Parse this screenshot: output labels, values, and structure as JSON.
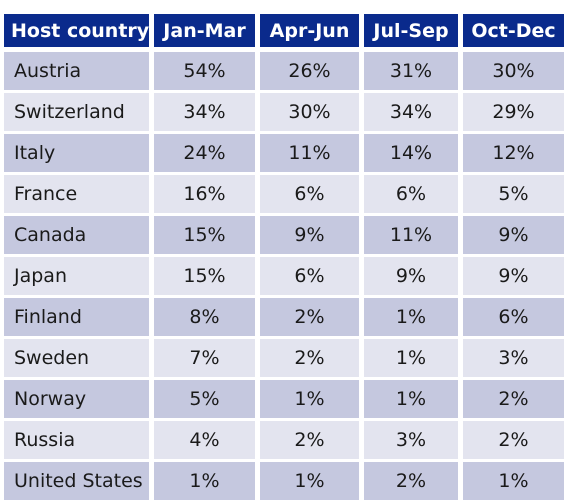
{
  "chart_data": {
    "type": "table",
    "headers": [
      "Host country",
      "Jan-Mar",
      "Apr-Jun",
      "Jul-Sep",
      "Oct-Dec"
    ],
    "rows": [
      [
        "Austria",
        "54%",
        "26%",
        "31%",
        "30%"
      ],
      [
        "Switzerland",
        "34%",
        "30%",
        "34%",
        "29%"
      ],
      [
        "Italy",
        "24%",
        "11%",
        "14%",
        "12%"
      ],
      [
        "France",
        "16%",
        "6%",
        "6%",
        "5%"
      ],
      [
        "Canada",
        "15%",
        "9%",
        "11%",
        "9%"
      ],
      [
        "Japan",
        "15%",
        "6%",
        "9%",
        "9%"
      ],
      [
        "Finland",
        "8%",
        "2%",
        "1%",
        "6%"
      ],
      [
        "Sweden",
        "7%",
        "2%",
        "1%",
        "3%"
      ],
      [
        "Norway",
        "5%",
        "1%",
        "1%",
        "2%"
      ],
      [
        "Russia",
        "4%",
        "2%",
        "3%",
        "2%"
      ],
      [
        "United States",
        "1%",
        "1%",
        "2%",
        "1%"
      ]
    ]
  },
  "colors": {
    "header_bg": "#0a2a8c",
    "header_text": "#ffffff",
    "row_dark": "#c5c8df",
    "row_light": "#e3e4ef",
    "text": "#1a1a1a"
  }
}
